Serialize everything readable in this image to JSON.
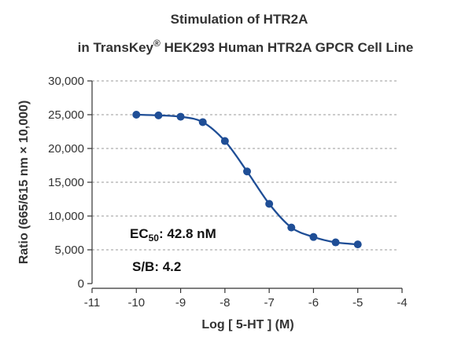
{
  "chart_data": {
    "type": "line",
    "title_line1": "Stimulation of  HTR2A",
    "title_line2_prefix": "in TransKey",
    "title_line2_reg": "®",
    "title_line2_suffix": " HEK293 Human HTR2A GPCR Cell Line",
    "xlabel": "Log [ 5-HT ]  (M)",
    "ylabel": "Ratio (665/615 nm × 10,000)",
    "xlim": [
      -11,
      -4
    ],
    "ylim": [
      0,
      30000
    ],
    "xticks": [
      "-11",
      "-10",
      "-9",
      "-8",
      "-7",
      "-6",
      "-5",
      "-4"
    ],
    "yticks": [
      "0",
      "5,000",
      "10,000",
      "15,000",
      "20,000",
      "25,000",
      "30,000"
    ],
    "grid": "horizontal dashed",
    "series": [
      {
        "x": [
          -10,
          -9.5,
          -9,
          -8.5,
          -8,
          -7.5,
          -7,
          -6.5,
          -6,
          -5.5,
          -5
        ],
        "values": [
          25000,
          24900,
          24700,
          23900,
          21100,
          16600,
          11800,
          8300,
          6900,
          6100,
          5800
        ]
      }
    ],
    "annotations": {
      "ec50_prefix": "EC",
      "ec50_sub": "50",
      "ec50_value": ": 42.8 nM",
      "sb": "S/B: 4.2"
    },
    "colors": {
      "series": "#1f4e96",
      "axis": "#333333",
      "grid": "#9a9a9a"
    }
  }
}
